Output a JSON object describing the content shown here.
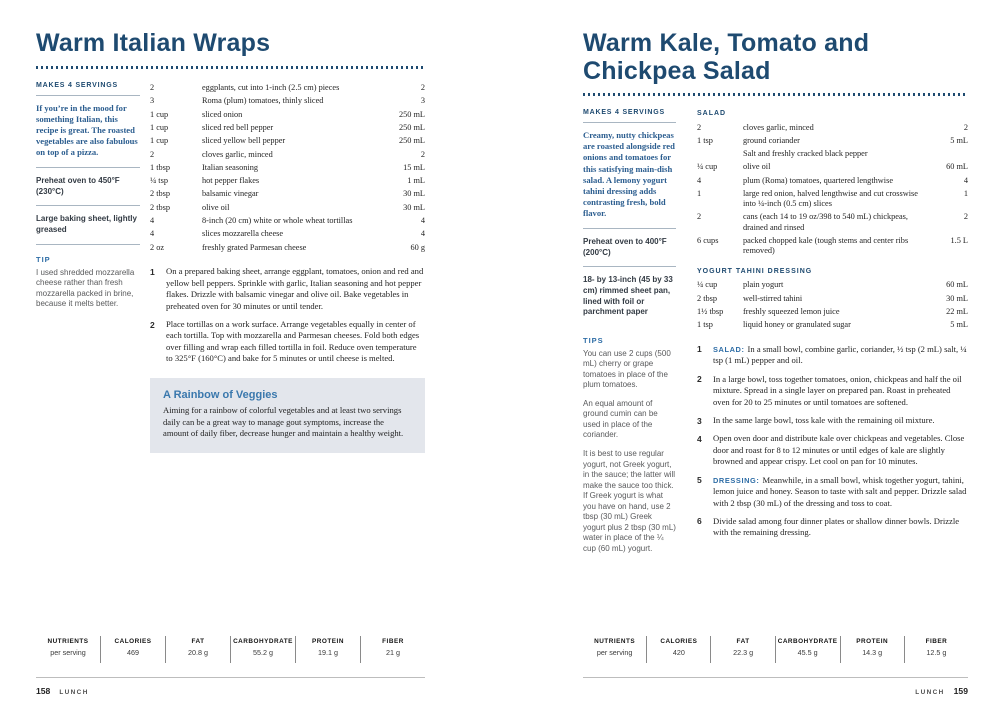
{
  "colors": {
    "title_navy": "#1e4a70",
    "intro_blue": "#2b5d8f",
    "label_blue": "#2e6da6",
    "callout_bg": "#e3e6ec",
    "rule_gray_blue": "#a9b6c2"
  },
  "left_page": {
    "title": "Warm Italian Wraps",
    "sidebar": {
      "makes": "MAKES 4 SERVINGS",
      "intro": "If you’re in the mood for something Italian, this recipe is great. The roasted vegetables are also fabulous on top of a pizza.",
      "equipment": [
        {
          "text": "Preheat oven to 450°F (230°C)"
        },
        {
          "text": "Large baking sheet, lightly greased"
        }
      ],
      "tips_heading": "TIP",
      "tips": [
        {
          "text": "I used shredded mozzarella cheese rather than fresh mozzarella packed in brine, because it melts better."
        }
      ]
    },
    "ingredients_heading": "",
    "ingredients": [
      {
        "qty": "2",
        "item": "eggplants, cut into 1-inch (2.5 cm) pieces",
        "metric": "2"
      },
      {
        "qty": "3",
        "item": "Roma (plum) tomatoes, thinly sliced",
        "metric": "3"
      },
      {
        "qty": "1 cup",
        "item": "sliced onion",
        "metric": "250 mL"
      },
      {
        "qty": "1 cup",
        "item": "sliced red bell pepper",
        "metric": "250 mL"
      },
      {
        "qty": "1 cup",
        "item": "sliced yellow bell pepper",
        "metric": "250 mL"
      },
      {
        "qty": "2",
        "item": "cloves garlic, minced",
        "metric": "2"
      },
      {
        "qty": "1 tbsp",
        "item": "Italian seasoning",
        "metric": "15 mL"
      },
      {
        "qty": "¼ tsp",
        "item": "hot pepper flakes",
        "metric": "1 mL"
      },
      {
        "qty": "2 tbsp",
        "item": "balsamic vinegar",
        "metric": "30 mL"
      },
      {
        "qty": "2 tbsp",
        "item": "olive oil",
        "metric": "30 mL"
      },
      {
        "qty": "4",
        "item": "8-inch (20 cm) white or whole wheat tortillas",
        "metric": "4"
      },
      {
        "qty": "4",
        "item": "slices mozzarella cheese",
        "metric": "4"
      },
      {
        "qty": "2 oz",
        "item": "freshly grated Parmesan cheese",
        "metric": "60 g"
      }
    ],
    "steps": [
      {
        "num": "1",
        "label": "",
        "text": "On a prepared baking sheet, arrange eggplant, tomatoes, onion and red and yellow bell peppers. Sprinkle with garlic, Italian seasoning and hot pepper flakes. Drizzle with balsamic vinegar and olive oil. Bake vegetables in preheated oven for 30 minutes or until tender."
      },
      {
        "num": "2",
        "label": "",
        "text": "Place tortillas on a work surface. Arrange vegetables equally in center of each tortilla. Top with mozzarella and Parmesan cheeses. Fold both edges over filling and wrap each filled tortilla in foil. Reduce oven temperature to 325°F (160°C) and bake for 5 minutes or until cheese is melted."
      }
    ],
    "callout": {
      "heading": "A Rainbow of Veggies",
      "body": "Aiming for a rainbow of colorful vegetables and at least two servings daily can be a great way to manage gout symptoms, increase the amount of daily fiber, decrease hunger and maintain a healthy weight."
    },
    "nutrients": [
      {
        "label": "NUTRIENTS",
        "value": "per serving"
      },
      {
        "label": "CALORIES",
        "value": "469"
      },
      {
        "label": "FAT",
        "value": "20.8 g"
      },
      {
        "label": "CARBOHYDRATE",
        "value": "55.2 g"
      },
      {
        "label": "PROTEIN",
        "value": "19.1 g"
      },
      {
        "label": "FIBER",
        "value": "21 g"
      }
    ],
    "footer": {
      "page_number": "158",
      "section": "LUNCH"
    }
  },
  "right_page": {
    "title": "Warm Kale, Tomato and Chickpea Salad",
    "sidebar": {
      "makes": "MAKES 4 SERVINGS",
      "intro": "Creamy, nutty chickpeas are roasted alongside red onions and tomatoes for this satisfying main-dish salad. A lemony yogurt tahini dressing adds contrasting fresh, bold flavor.",
      "equipment": [
        {
          "text": "Preheat oven to 400°F (200°C)"
        },
        {
          "text": "18- by 13-inch (45 by 33 cm) rimmed sheet pan, lined with foil or parchment paper"
        }
      ],
      "tips_heading": "TIPS",
      "tips": [
        {
          "text": "You can use 2 cups (500 mL) cherry or grape tomatoes in place of the plum tomatoes."
        },
        {
          "text": "An equal amount of ground cumin can be used in place of the coriander."
        },
        {
          "text": "It is best to use regular yogurt, not Greek yogurt, in the sauce; the latter will make the sauce too thick. If Greek yogurt is what you have on hand, use 2 tbsp (30 mL) Greek yogurt plus 2 tbsp (30 mL) water in place of the ¼ cup (60 mL) yogurt."
        }
      ]
    },
    "salad_heading": "SALAD",
    "salad_ingredients": [
      {
        "qty": "2",
        "item": "cloves garlic, minced",
        "metric": "2"
      },
      {
        "qty": "1 tsp",
        "item": "ground coriander",
        "metric": "5 mL"
      },
      {
        "qty": "",
        "item": "Salt and freshly cracked black pepper",
        "metric": ""
      },
      {
        "qty": "¼ cup",
        "item": "olive oil",
        "metric": "60 mL"
      },
      {
        "qty": "4",
        "item": "plum (Roma) tomatoes, quartered lengthwise",
        "metric": "4"
      },
      {
        "qty": "1",
        "item": "large red onion, halved lengthwise and cut crosswise into ¼-inch (0.5 cm) slices",
        "metric": "1"
      },
      {
        "qty": "2",
        "item": "cans (each 14 to 19 oz/398 to 540 mL) chickpeas, drained and rinsed",
        "metric": "2"
      },
      {
        "qty": "6 cups",
        "item": "packed chopped kale (tough stems and center ribs removed)",
        "metric": "1.5 L"
      }
    ],
    "dressing_heading": "YOGURT TAHINI DRESSING",
    "dressing_ingredients": [
      {
        "qty": "¼ cup",
        "item": "plain yogurt",
        "metric": "60 mL"
      },
      {
        "qty": "2 tbsp",
        "item": "well-stirred tahini",
        "metric": "30 mL"
      },
      {
        "qty": "1½ tbsp",
        "item": "freshly squeezed lemon juice",
        "metric": "22 mL"
      },
      {
        "qty": "1 tsp",
        "item": "liquid honey or granulated sugar",
        "metric": "5 mL"
      }
    ],
    "steps": [
      {
        "num": "1",
        "label": "SALAD:",
        "text": "In a small bowl, combine garlic, coriander, ½ tsp (2 mL) salt, ¼ tsp (1 mL) pepper and oil."
      },
      {
        "num": "2",
        "label": "",
        "text": "In a large bowl, toss together tomatoes, onion, chickpeas and half the oil mixture. Spread in a single layer on prepared pan. Roast in preheated oven for 20 to 25 minutes or until tomatoes are softened."
      },
      {
        "num": "3",
        "label": "",
        "text": "In the same large bowl, toss kale with the remaining oil mixture."
      },
      {
        "num": "4",
        "label": "",
        "text": "Open oven door and distribute kale over chickpeas and vegetables. Close door and roast for 8 to 12 minutes or until edges of kale are slightly browned and appear crispy. Let cool on pan for 10 minutes."
      },
      {
        "num": "5",
        "label": "DRESSING:",
        "text": "Meanwhile, in a small bowl, whisk together yogurt, tahini, lemon juice and honey. Season to taste with salt and pepper. Drizzle salad with 2 tbsp (30 mL) of the dressing and toss to coat."
      },
      {
        "num": "6",
        "label": "",
        "text": "Divide salad among four dinner plates or shallow dinner bowls. Drizzle with the remaining dressing."
      }
    ],
    "nutrients": [
      {
        "label": "NUTRIENTS",
        "value": "per serving"
      },
      {
        "label": "CALORIES",
        "value": "420"
      },
      {
        "label": "FAT",
        "value": "22.3 g"
      },
      {
        "label": "CARBOHYDRATE",
        "value": "45.5 g"
      },
      {
        "label": "PROTEIN",
        "value": "14.3 g"
      },
      {
        "label": "FIBER",
        "value": "12.5 g"
      }
    ],
    "footer": {
      "page_number": "159",
      "section": "LUNCH"
    }
  }
}
